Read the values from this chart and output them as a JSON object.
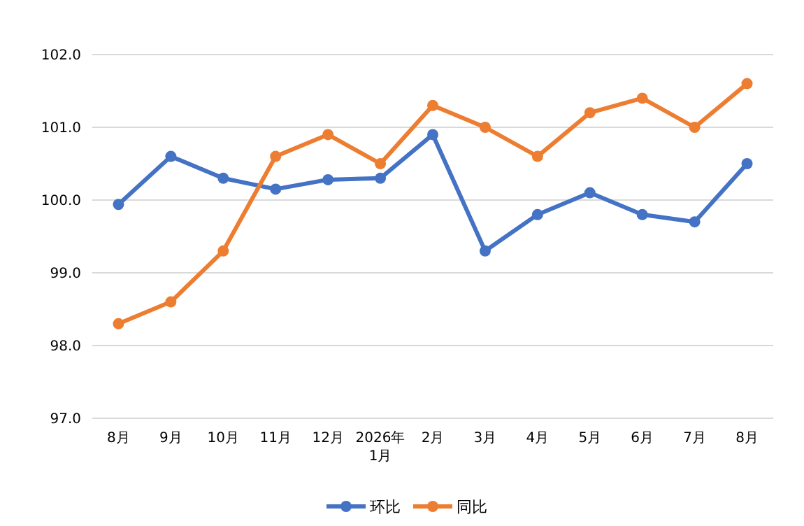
{
  "chart_data": {
    "type": "line",
    "categories": [
      "8月",
      "9月",
      "10月",
      "11月",
      "12月",
      "2026年\n1月",
      "2月",
      "3月",
      "4月",
      "5月",
      "6月",
      "7月",
      "8月"
    ],
    "series": [
      {
        "name": "环比",
        "color": "#4472c4",
        "values": [
          99.94,
          100.6,
          100.3,
          100.15,
          100.28,
          100.3,
          100.9,
          99.3,
          99.8,
          100.1,
          99.8,
          99.7,
          100.5
        ]
      },
      {
        "name": "同比",
        "color": "#ed7d31",
        "values": [
          98.3,
          98.6,
          99.3,
          100.6,
          100.9,
          100.5,
          101.3,
          101.0,
          100.6,
          101.2,
          101.4,
          101.0,
          101.6
        ]
      }
    ],
    "ylim": [
      97,
      102
    ],
    "yticks": [
      {
        "value": 97,
        "label": "97.0"
      },
      {
        "value": 98,
        "label": "98.0"
      },
      {
        "value": 99,
        "label": "99.0"
      },
      {
        "value": 100,
        "label": "100.0"
      },
      {
        "value": 101,
        "label": "101.0"
      },
      {
        "value": 102,
        "label": "102.0"
      }
    ],
    "grid": "y",
    "legend": "bottom",
    "marker": "circle",
    "line_style": "solid"
  }
}
